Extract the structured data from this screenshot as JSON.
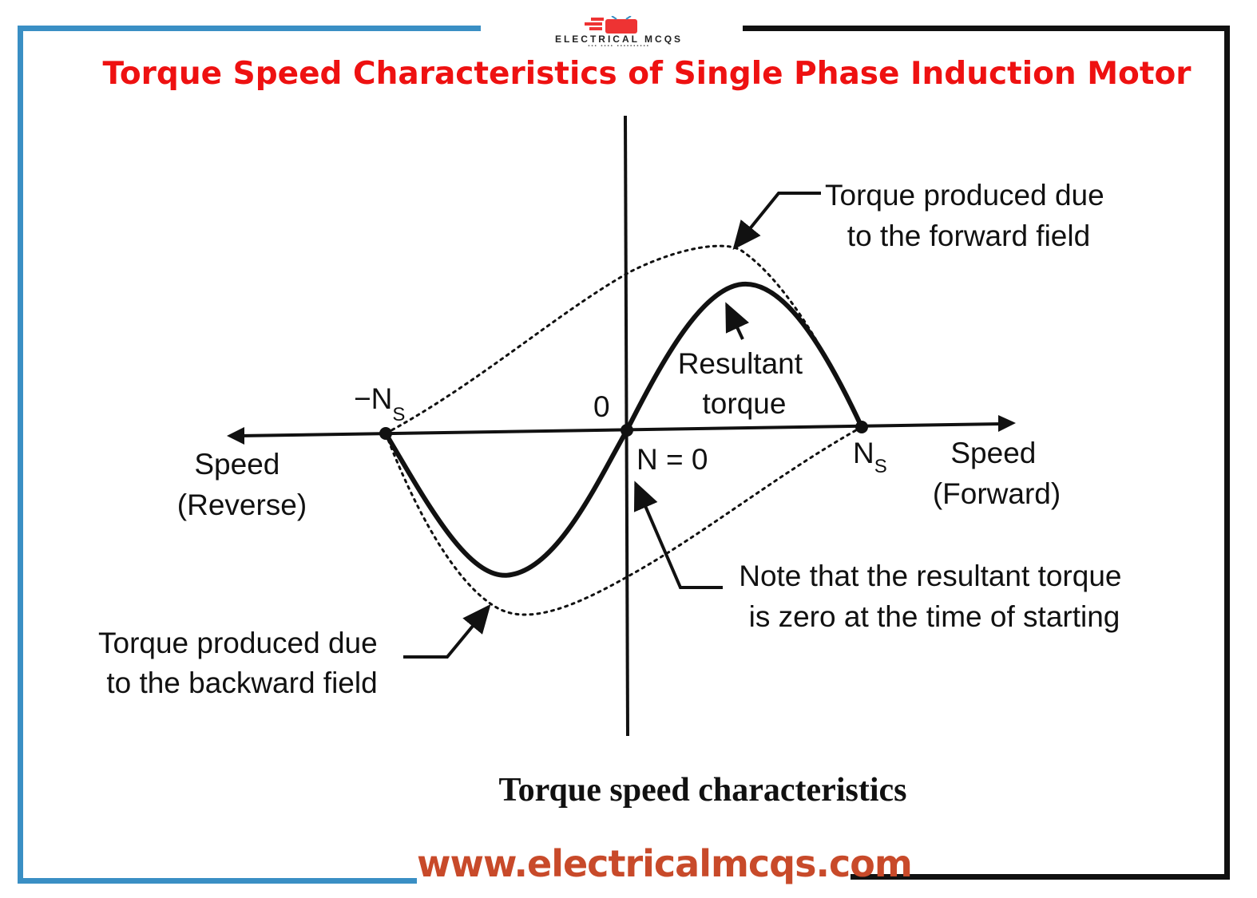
{
  "header": {
    "logo_text": "ELECTRICAL MCQS",
    "title": "Torque Speed Characteristics of Single Phase Induction Motor"
  },
  "diagram": {
    "origin_label": "0",
    "n_zero_label": "N = 0",
    "neg_ns_label": "−N",
    "neg_ns_sub": "S",
    "ns_label": "N",
    "ns_sub": "S",
    "speed_reverse": [
      "Speed",
      "(Reverse)"
    ],
    "speed_forward": [
      "Speed",
      "(Forward)"
    ],
    "forward_field_label": [
      "Torque produced due",
      "to the forward field"
    ],
    "backward_field_label": [
      "Torque produced due",
      "to the backward field"
    ],
    "resultant_label": [
      "Resultant",
      "torque"
    ],
    "note_label": [
      "Note that the resultant torque",
      "is zero at the time of starting"
    ]
  },
  "caption": "Torque speed characteristics",
  "footer": {
    "website": "www.electricalmcqs.com"
  },
  "colors": {
    "title": "#ee1111",
    "frame_left": "#3a8fc4",
    "frame_right": "#111111",
    "website": "#c84a2a"
  }
}
